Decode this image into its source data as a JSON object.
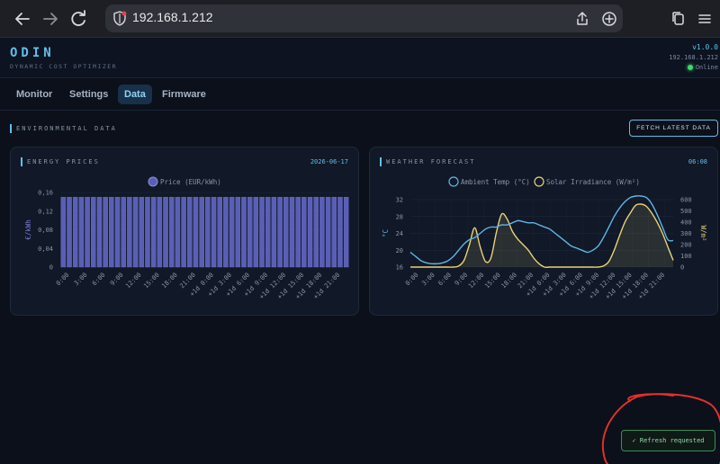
{
  "browser": {
    "url": "192.168.1.212"
  },
  "app": {
    "name": "ODIN",
    "tagline": "DYNAMIC COST OPTIMIZER",
    "version": "v1.0.0",
    "ip": "192.168.1.212",
    "status": "Online"
  },
  "tabs": [
    {
      "label": "Monitor"
    },
    {
      "label": "Settings"
    },
    {
      "label": "Data"
    },
    {
      "label": "Firmware"
    }
  ],
  "section": {
    "title": "ENVIRONMENTAL DATA",
    "fetch_label": "FETCH LATEST DATA"
  },
  "energy": {
    "title": "ENERGY PRICES",
    "date": "2026-06-17"
  },
  "weather": {
    "title": "WEATHER FORECAST",
    "time": "06:08"
  },
  "toast": "✓ Refresh requested",
  "colors": {
    "accent": "#5fc0ea",
    "price_bar": "#5a5fb5",
    "temp_line": "#5fb6e6",
    "solar_line": "#e8d27a",
    "online": "#3ddc6b"
  },
  "chart_data": [
    {
      "type": "bar",
      "legend": [
        "Price (EUR/kWh)"
      ],
      "ylabel": "€/kWh",
      "ylim": [
        0,
        0.16
      ],
      "yticks": [
        "0,16",
        "0,12",
        "0,08",
        "0,04",
        "0"
      ],
      "xticks": [
        "0:00",
        "3:00",
        "6:00",
        "9:00",
        "12:00",
        "15:00",
        "18:00",
        "21:00",
        "+1d 0:00",
        "+1d 3:00",
        "+1d 6:00",
        "+1d 9:00",
        "+1d 12:00",
        "+1d 15:00",
        "+1d 18:00",
        "+1d 21:00"
      ],
      "series": [
        {
          "name": "Price (EUR/kWh)",
          "values": [
            0.15,
            0.15,
            0.15,
            0.15,
            0.15,
            0.15,
            0.15,
            0.15,
            0.15,
            0.15,
            0.15,
            0.15,
            0.15,
            0.15,
            0.15,
            0.15,
            0.15,
            0.15,
            0.15,
            0.15,
            0.15,
            0.15,
            0.15,
            0.15,
            0.15,
            0.15,
            0.15,
            0.15,
            0.15,
            0.15,
            0.15,
            0.15,
            0.15,
            0.15,
            0.15,
            0.15,
            0.15,
            0.15,
            0.15,
            0.15,
            0.15,
            0.15,
            0.15,
            0.15,
            0.15,
            0.15,
            0.15,
            0.15
          ]
        }
      ]
    },
    {
      "type": "line",
      "legend": [
        "Ambient Temp (°C)",
        "Solar Irradiance (W/m²)"
      ],
      "ylabel": "°C",
      "y2label": "W/m²",
      "ylim": [
        16,
        32
      ],
      "y2lim": [
        0,
        600
      ],
      "yticks": [
        "32",
        "28",
        "24",
        "20",
        "16"
      ],
      "y2ticks": [
        "600",
        "500",
        "400",
        "300",
        "200",
        "100",
        "0"
      ],
      "xticks": [
        "0:00",
        "3:00",
        "6:00",
        "9:00",
        "12:00",
        "15:00",
        "18:00",
        "21:00",
        "+1d 0:00",
        "+1d 3:00",
        "+1d 6:00",
        "+1d 9:00",
        "+1d 12:00",
        "+1d 15:00",
        "+1d 18:00",
        "+1d 21:00"
      ],
      "series": [
        {
          "name": "Ambient Temp (°C)",
          "values": [
            19.5,
            18.5,
            17.5,
            17.0,
            16.8,
            16.8,
            17.0,
            17.5,
            18.5,
            20.0,
            21.5,
            22.5,
            23.0,
            24.0,
            25.0,
            25.5,
            25.5,
            26.0,
            26.0,
            26.5,
            27.0,
            26.8,
            26.5,
            26.5,
            26.0,
            25.5,
            25.0,
            24.0,
            23.0,
            22.0,
            21.0,
            20.5,
            20.0,
            19.5,
            20.0,
            21.0,
            23.0,
            25.5,
            28.0,
            30.0,
            31.5,
            32.5,
            33.0,
            33.0,
            32.5,
            31.0,
            28.5,
            25.5,
            22.5,
            22.3
          ]
        },
        {
          "name": "Solar Irradiance (W/m²)",
          "values": [
            0,
            0,
            0,
            0,
            0,
            0,
            0,
            0,
            0,
            10,
            60,
            200,
            350,
            180,
            50,
            80,
            300,
            470,
            430,
            320,
            250,
            200,
            150,
            80,
            30,
            0,
            0,
            0,
            0,
            0,
            0,
            0,
            0,
            0,
            0,
            0,
            10,
            50,
            150,
            280,
            400,
            480,
            550,
            560,
            540,
            480,
            400,
            300,
            180,
            60
          ]
        }
      ]
    }
  ]
}
